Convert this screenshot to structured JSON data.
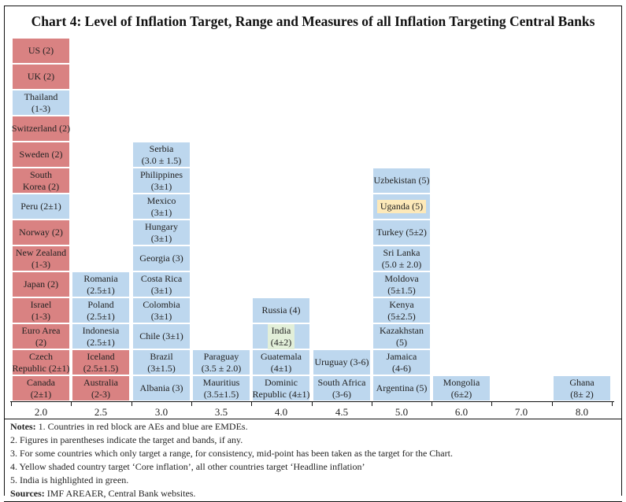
{
  "chart_data": {
    "type": "stacked-block",
    "title": "Chart 4: Level of Inflation Target, Range and Measures of all Inflation Targeting Central Banks",
    "categories": [
      "2.0",
      "2.5",
      "3.0",
      "3.5",
      "4.0",
      "4.5",
      "5.0",
      "6.0",
      "7.0",
      "8.0"
    ],
    "colors": {
      "ae": "#d98282",
      "emde": "#bdd7ee",
      "core": "#fde9b9",
      "india": "#e2efd9"
    },
    "columns": [
      {
        "x": "2.0",
        "blocks": [
          {
            "label": "Canada\n(2±1)",
            "group": "ae"
          },
          {
            "label": "Czech\nRepublic (2±1)",
            "group": "ae"
          },
          {
            "label": "Euro Area\n(2)",
            "group": "ae"
          },
          {
            "label": "Israel\n(1-3)",
            "group": "ae"
          },
          {
            "label": "Japan (2)",
            "group": "ae"
          },
          {
            "label": "New Zealand\n(1-3)",
            "group": "ae"
          },
          {
            "label": "Norway (2)",
            "group": "ae"
          },
          {
            "label": "Peru (2±1)",
            "group": "emde"
          },
          {
            "label": "South\nKorea (2)",
            "group": "ae"
          },
          {
            "label": "Sweden (2)",
            "group": "ae"
          },
          {
            "label": "Switzerland (2)",
            "group": "ae"
          },
          {
            "label": "Thailand\n(1-3)",
            "group": "emde"
          },
          {
            "label": "UK (2)",
            "group": "ae"
          },
          {
            "label": "US (2)",
            "group": "ae"
          }
        ]
      },
      {
        "x": "2.5",
        "blocks": [
          {
            "label": "Australia\n(2-3)",
            "group": "ae"
          },
          {
            "label": "Iceland\n(2.5±1.5)",
            "group": "ae"
          },
          {
            "label": "Indonesia\n(2.5±1)",
            "group": "emde"
          },
          {
            "label": "Poland\n(2.5±1)",
            "group": "emde"
          },
          {
            "label": "Romania\n(2.5±1)",
            "group": "emde"
          }
        ]
      },
      {
        "x": "3.0",
        "blocks": [
          {
            "label": "Albania (3)",
            "group": "emde"
          },
          {
            "label": "Brazil\n(3±1.5)",
            "group": "emde"
          },
          {
            "label": "Chile (3±1)",
            "group": "emde"
          },
          {
            "label": "Colombia\n(3±1)",
            "group": "emde"
          },
          {
            "label": "Costa Rica\n(3±1)",
            "group": "emde"
          },
          {
            "label": "Georgia (3)",
            "group": "emde"
          },
          {
            "label": "Hungary\n(3±1)",
            "group": "emde"
          },
          {
            "label": "Mexico\n(3±1)",
            "group": "emde"
          },
          {
            "label": "Philippines\n(3±1)",
            "group": "emde"
          },
          {
            "label": "Serbia\n(3.0 ± 1.5)",
            "group": "emde"
          }
        ]
      },
      {
        "x": "3.5",
        "blocks": [
          {
            "label": "Mauritius\n(3.5±1.5)",
            "group": "emde"
          },
          {
            "label": "Paraguay\n(3.5 ± 2.0)",
            "group": "emde"
          }
        ]
      },
      {
        "x": "4.0",
        "blocks": [
          {
            "label": "Dominic\nRepublic (4±1)",
            "group": "emde"
          },
          {
            "label": "Guatemala\n(4±1)",
            "group": "emde"
          },
          {
            "label": "India\n(4±2)",
            "group": "emde",
            "highlight": "india"
          },
          {
            "label": "Russia (4)",
            "group": "emde"
          }
        ]
      },
      {
        "x": "4.5",
        "blocks": [
          {
            "label": "South Africa\n(3-6)",
            "group": "emde"
          },
          {
            "label": "Uruguay (3-6)",
            "group": "emde"
          }
        ]
      },
      {
        "x": "5.0",
        "blocks": [
          {
            "label": "Argentina (5)",
            "group": "emde"
          },
          {
            "label": "Jamaica\n(4-6)",
            "group": "emde"
          },
          {
            "label": "Kazakhstan\n(5)",
            "group": "emde"
          },
          {
            "label": "Kenya\n(5±2.5)",
            "group": "emde"
          },
          {
            "label": "Moldova\n(5±1.5)",
            "group": "emde"
          },
          {
            "label": "Sri Lanka\n(5.0 ± 2.0)",
            "group": "emde"
          },
          {
            "label": "Turkey (5±2)",
            "group": "emde"
          },
          {
            "label": "Uganda (5)",
            "group": "emde",
            "highlight": "core"
          },
          {
            "label": "Uzbekistan (5)",
            "group": "emde"
          }
        ]
      },
      {
        "x": "6.0",
        "blocks": [
          {
            "label": "Mongolia\n(6±2)",
            "group": "emde"
          }
        ]
      },
      {
        "x": "7.0",
        "blocks": []
      },
      {
        "x": "8.0",
        "blocks": [
          {
            "label": "Ghana\n(8± 2)",
            "group": "emde"
          }
        ]
      }
    ]
  },
  "notes": {
    "notes_label": "Notes:",
    "note1": " 1. Countries in red block are AEs and blue are EMDEs.",
    "note2": "2. Figures in parentheses indicate the target and bands, if any.",
    "note3": "3. For some countries which only target a range, for consistency, mid-point has been taken as the target for the Chart.",
    "note4": "4. Yellow shaded country target ‘Core inflation’, all other countries target ‘Headline inflation’",
    "note5": "5. India is highlighted in green.",
    "sources_label": "Sources:",
    "sources": " IMF AREAER, Central Bank websites."
  }
}
